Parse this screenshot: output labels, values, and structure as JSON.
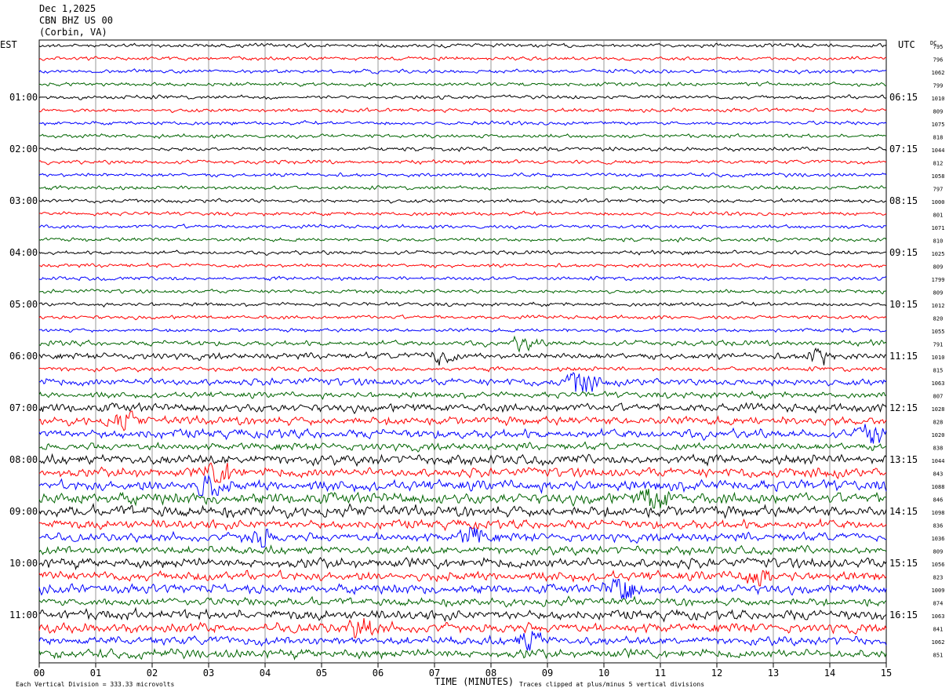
{
  "header": {
    "date": "Dec 1,2025",
    "station": "CBN BHZ US 00",
    "location": "(Corbin, VA)"
  },
  "left_zone": "EST",
  "right_zone": "UTC",
  "dc_label": "DC",
  "footer": {
    "scale_note": "Each Vertical Division =  333.33 microvolts",
    "xlabel": "TIME (MINUTES)",
    "clip_note": "Traces clipped at plus/minus 5 vertical divisions"
  },
  "colors": {
    "trace_cycle": [
      "#000000",
      "#ff0000",
      "#0000ff",
      "#006400"
    ],
    "grid": "#808080"
  },
  "chart_data": {
    "type": "line",
    "title": "Dec 1,2025 CBN BHZ US 00 (Corbin, VA)",
    "xlabel": "TIME (MINUTES)",
    "xlim": [
      0,
      15
    ],
    "x_ticks": [
      "00",
      "01",
      "02",
      "03",
      "04",
      "05",
      "06",
      "07",
      "08",
      "09",
      "10",
      "11",
      "12",
      "13",
      "14",
      "15"
    ],
    "left_hour_labels": [
      "01:00",
      "02:00",
      "03:00",
      "04:00",
      "05:00",
      "06:00",
      "07:00",
      "08:00",
      "09:00",
      "10:00",
      "11:00"
    ],
    "right_hour_labels": [
      "06:15",
      "07:15",
      "08:15",
      "09:15",
      "10:15",
      "11:15",
      "12:15",
      "13:15",
      "14:15",
      "15:15",
      "16:15"
    ],
    "dc_values": [
      "795",
      "796",
      "1062",
      "799",
      "1010",
      "809",
      "1075",
      "818",
      "1044",
      "812",
      "1058",
      "797",
      "1000",
      "801",
      "1071",
      "810",
      "1025",
      "809",
      "1799",
      "809",
      "1012",
      "820",
      "1055",
      "791",
      "1010",
      "815",
      "1063",
      "807",
      "1028",
      "828",
      "1020",
      "838",
      "1044",
      "843",
      "1088",
      "846",
      "1098",
      "836",
      "1036",
      "809",
      "1056",
      "823",
      "1009",
      "874",
      "1063",
      "841",
      "1062",
      "851"
    ],
    "activity": [
      1,
      1,
      1,
      1,
      1,
      1,
      1,
      1,
      1,
      1,
      1,
      1,
      1,
      1,
      1,
      1,
      1,
      1,
      1,
      1,
      1,
      1,
      1,
      1.4,
      1.6,
      1.2,
      1.9,
      1.6,
      2.2,
      2.3,
      2.4,
      1.9,
      2.6,
      2.5,
      2.8,
      2.9,
      3.0,
      2.4,
      2.2,
      2.2,
      2.7,
      2.5,
      2.4,
      2.2,
      2.6,
      2.5,
      2.3,
      2.4
    ],
    "events": [
      {
        "trace": 23,
        "minute": 8.6,
        "amp": 2.0
      },
      {
        "trace": 24,
        "minute": 7.1,
        "amp": 2.2
      },
      {
        "trace": 24,
        "minute": 13.8,
        "amp": 2.2
      },
      {
        "trace": 26,
        "minute": 9.6,
        "amp": 3.5
      },
      {
        "trace": 29,
        "minute": 1.5,
        "amp": 2.2
      },
      {
        "trace": 30,
        "minute": 14.8,
        "amp": 2.4
      },
      {
        "trace": 33,
        "minute": 3.2,
        "amp": 2.6
      },
      {
        "trace": 34,
        "minute": 3.0,
        "amp": 3.0
      },
      {
        "trace": 35,
        "minute": 10.9,
        "amp": 2.2
      },
      {
        "trace": 38,
        "minute": 7.7,
        "amp": 2.8
      },
      {
        "trace": 38,
        "minute": 3.9,
        "amp": 2.0
      },
      {
        "trace": 42,
        "minute": 10.3,
        "amp": 5.0
      },
      {
        "trace": 41,
        "minute": 12.7,
        "amp": 2.0
      },
      {
        "trace": 45,
        "minute": 5.7,
        "amp": 2.0
      },
      {
        "trace": 46,
        "minute": 8.7,
        "amp": 2.4
      }
    ],
    "grid": true
  }
}
